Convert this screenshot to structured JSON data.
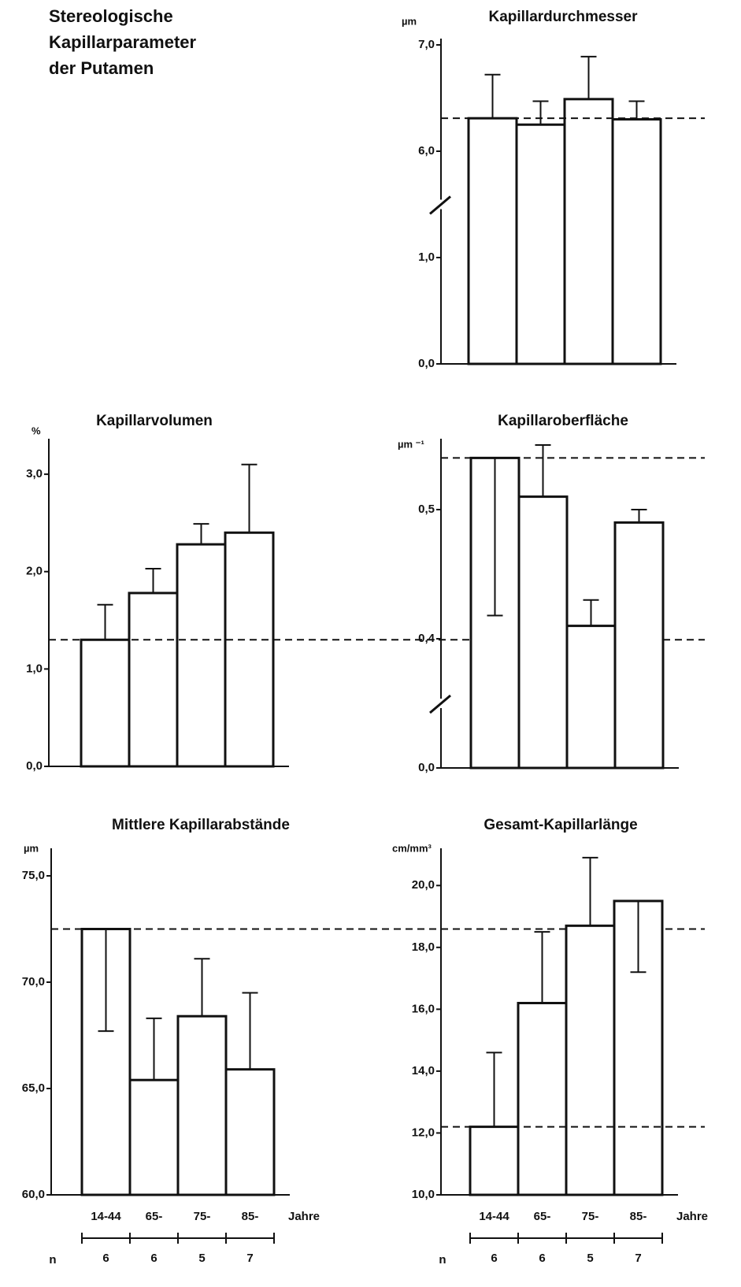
{
  "title": "Stereologische Kapillarparameter der Putamen",
  "chart_data": [
    {
      "type": "bar",
      "title": "Kapillardurchmesser",
      "y_label": "µm",
      "categories": [
        null,
        null,
        null,
        null
      ],
      "values": [
        6.31,
        6.25,
        6.49,
        6.3
      ],
      "errors": [
        0.41,
        0.22,
        0.4,
        0.17
      ],
      "error_direction": [
        "up",
        "up",
        "up",
        "up"
      ],
      "reference_line": 6.31,
      "axis_break": true,
      "color": "#ffffff",
      "ylim": [
        0,
        7
      ],
      "yticks": [
        {
          "value": 0,
          "label": "0,0"
        },
        {
          "value": 1,
          "label": "1,0"
        },
        {
          "value": 6,
          "label": "6,0"
        },
        {
          "value": 7,
          "label": "7,0"
        }
      ]
    },
    {
      "type": "bar",
      "title": "Kapillarvolumen",
      "y_label": "%",
      "categories": [
        null,
        null,
        null,
        null
      ],
      "values": [
        1.3,
        1.78,
        2.28,
        2.4
      ],
      "errors": [
        0.36,
        0.25,
        0.21,
        0.7
      ],
      "error_direction": [
        "up",
        "up",
        "up",
        "up"
      ],
      "reference_line": 1.3,
      "axis_break": false,
      "color": "#ffffff",
      "ylim": [
        0,
        3.3
      ],
      "yticks": [
        {
          "value": 0,
          "label": "0,0"
        },
        {
          "value": 1,
          "label": "1,0"
        },
        {
          "value": 2,
          "label": "2,0"
        },
        {
          "value": 3,
          "label": "3,0"
        }
      ]
    },
    {
      "type": "bar",
      "title": "Kapillaroberfläche",
      "y_label": "µm ⁻¹",
      "categories": [
        null,
        null,
        null,
        null
      ],
      "values": [
        0.54,
        0.51,
        0.41,
        0.49
      ],
      "errors": [
        0.122,
        0.04,
        0.02,
        0.01
      ],
      "error_direction": [
        "down",
        "up",
        "up",
        "up"
      ],
      "reference_line": 0.54,
      "axis_break": true,
      "color": "#ffffff",
      "ylim": [
        0,
        0.55
      ],
      "yticks": [
        {
          "value": 0,
          "label": "0,0"
        },
        {
          "value": 0.4,
          "label": "0,4"
        },
        {
          "value": 0.5,
          "label": "0,5"
        }
      ]
    },
    {
      "type": "bar",
      "title": "Mittlere Kapillarabstände",
      "y_label": "µm",
      "categories": [
        "14-44",
        "65-",
        "75-",
        "85-"
      ],
      "x_label": "Jahre",
      "n_label": "n",
      "n": [
        6,
        6,
        5,
        7
      ],
      "values": [
        72.5,
        65.4,
        68.4,
        65.9
      ],
      "errors": [
        4.8,
        2.9,
        2.7,
        3.6
      ],
      "error_direction": [
        "down",
        "up",
        "up",
        "up"
      ],
      "reference_line": 72.5,
      "axis_break": false,
      "color": "#ffffff",
      "ylim": [
        60,
        76
      ],
      "yticks": [
        {
          "value": 60,
          "label": "60,0"
        },
        {
          "value": 65,
          "label": "65,0"
        },
        {
          "value": 70,
          "label": "70,0"
        },
        {
          "value": 75,
          "label": "75,0"
        }
      ]
    },
    {
      "type": "bar",
      "title": "Gesamt-Kapillarlänge",
      "y_label": "cm/mm³",
      "categories": [
        "14-44",
        "65-",
        "75-",
        "85-"
      ],
      "x_label": "Jahre",
      "n_label": "n",
      "n": [
        6,
        6,
        5,
        7
      ],
      "values": [
        12.2,
        16.2,
        18.7,
        19.5
      ],
      "errors": [
        2.4,
        2.3,
        2.2,
        2.3
      ],
      "error_direction": [
        "up",
        "up",
        "up",
        "down"
      ],
      "reference_line": 12.2,
      "axis_break": false,
      "color": "#ffffff",
      "ylim": [
        10,
        21
      ],
      "yticks": [
        {
          "value": 10,
          "label": "10,0"
        },
        {
          "value": 12,
          "label": "12,0"
        },
        {
          "value": 14,
          "label": "14,0"
        },
        {
          "value": 16,
          "label": "16,0"
        },
        {
          "value": 18,
          "label": "18,0"
        },
        {
          "value": 20,
          "label": "20,0"
        }
      ]
    }
  ]
}
